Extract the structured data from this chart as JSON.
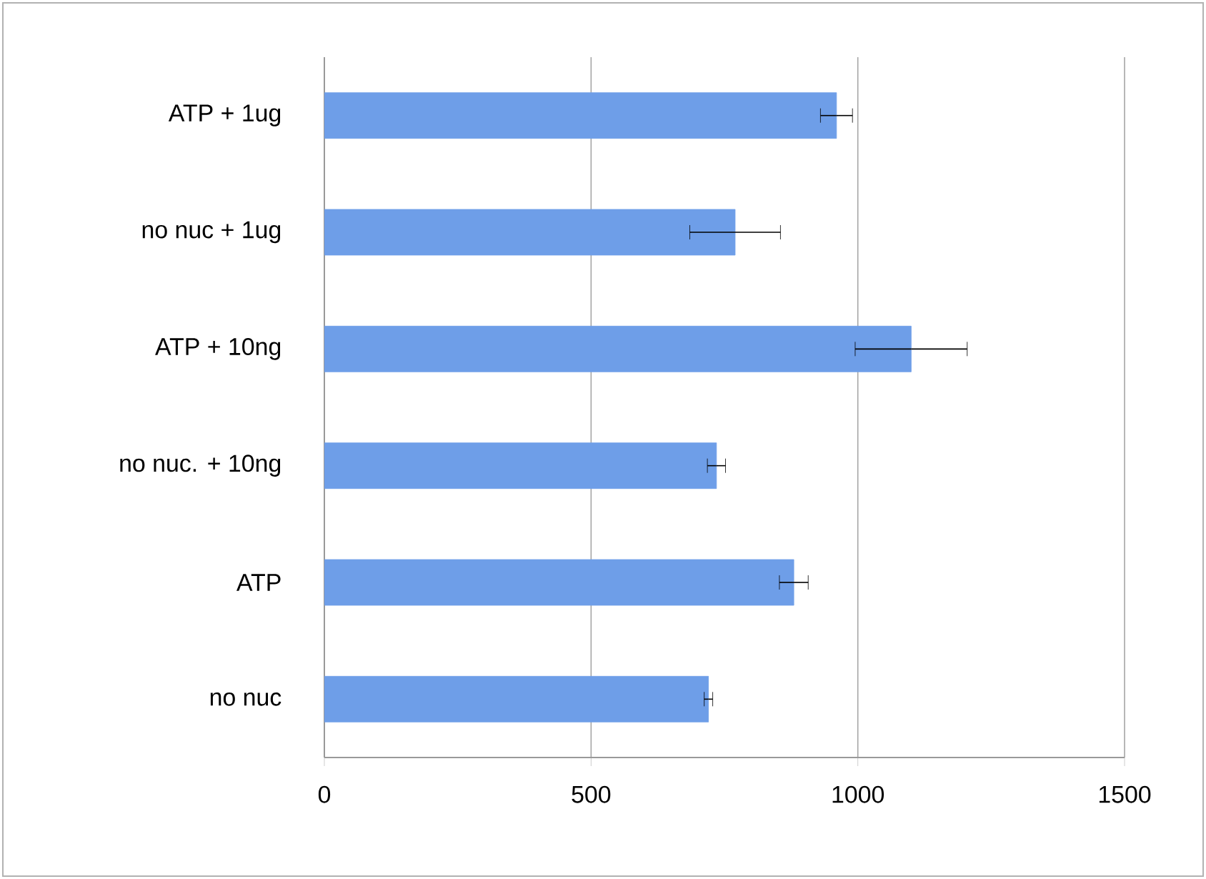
{
  "chart_data": {
    "type": "bar",
    "orientation": "horizontal",
    "categories": [
      "ATP + 1ug",
      "no nuc + 1ug",
      "ATP + 10ng",
      "no nuc. + 10ng",
      "ATP",
      "no nuc"
    ],
    "values": [
      960,
      770,
      1100,
      735,
      880,
      720
    ],
    "errors": [
      30,
      85,
      105,
      17,
      27,
      8
    ],
    "color": "#6e9ee8",
    "xlim": [
      0,
      1500
    ],
    "xticks": [
      0,
      500,
      1000,
      1500
    ],
    "grid": "x"
  }
}
